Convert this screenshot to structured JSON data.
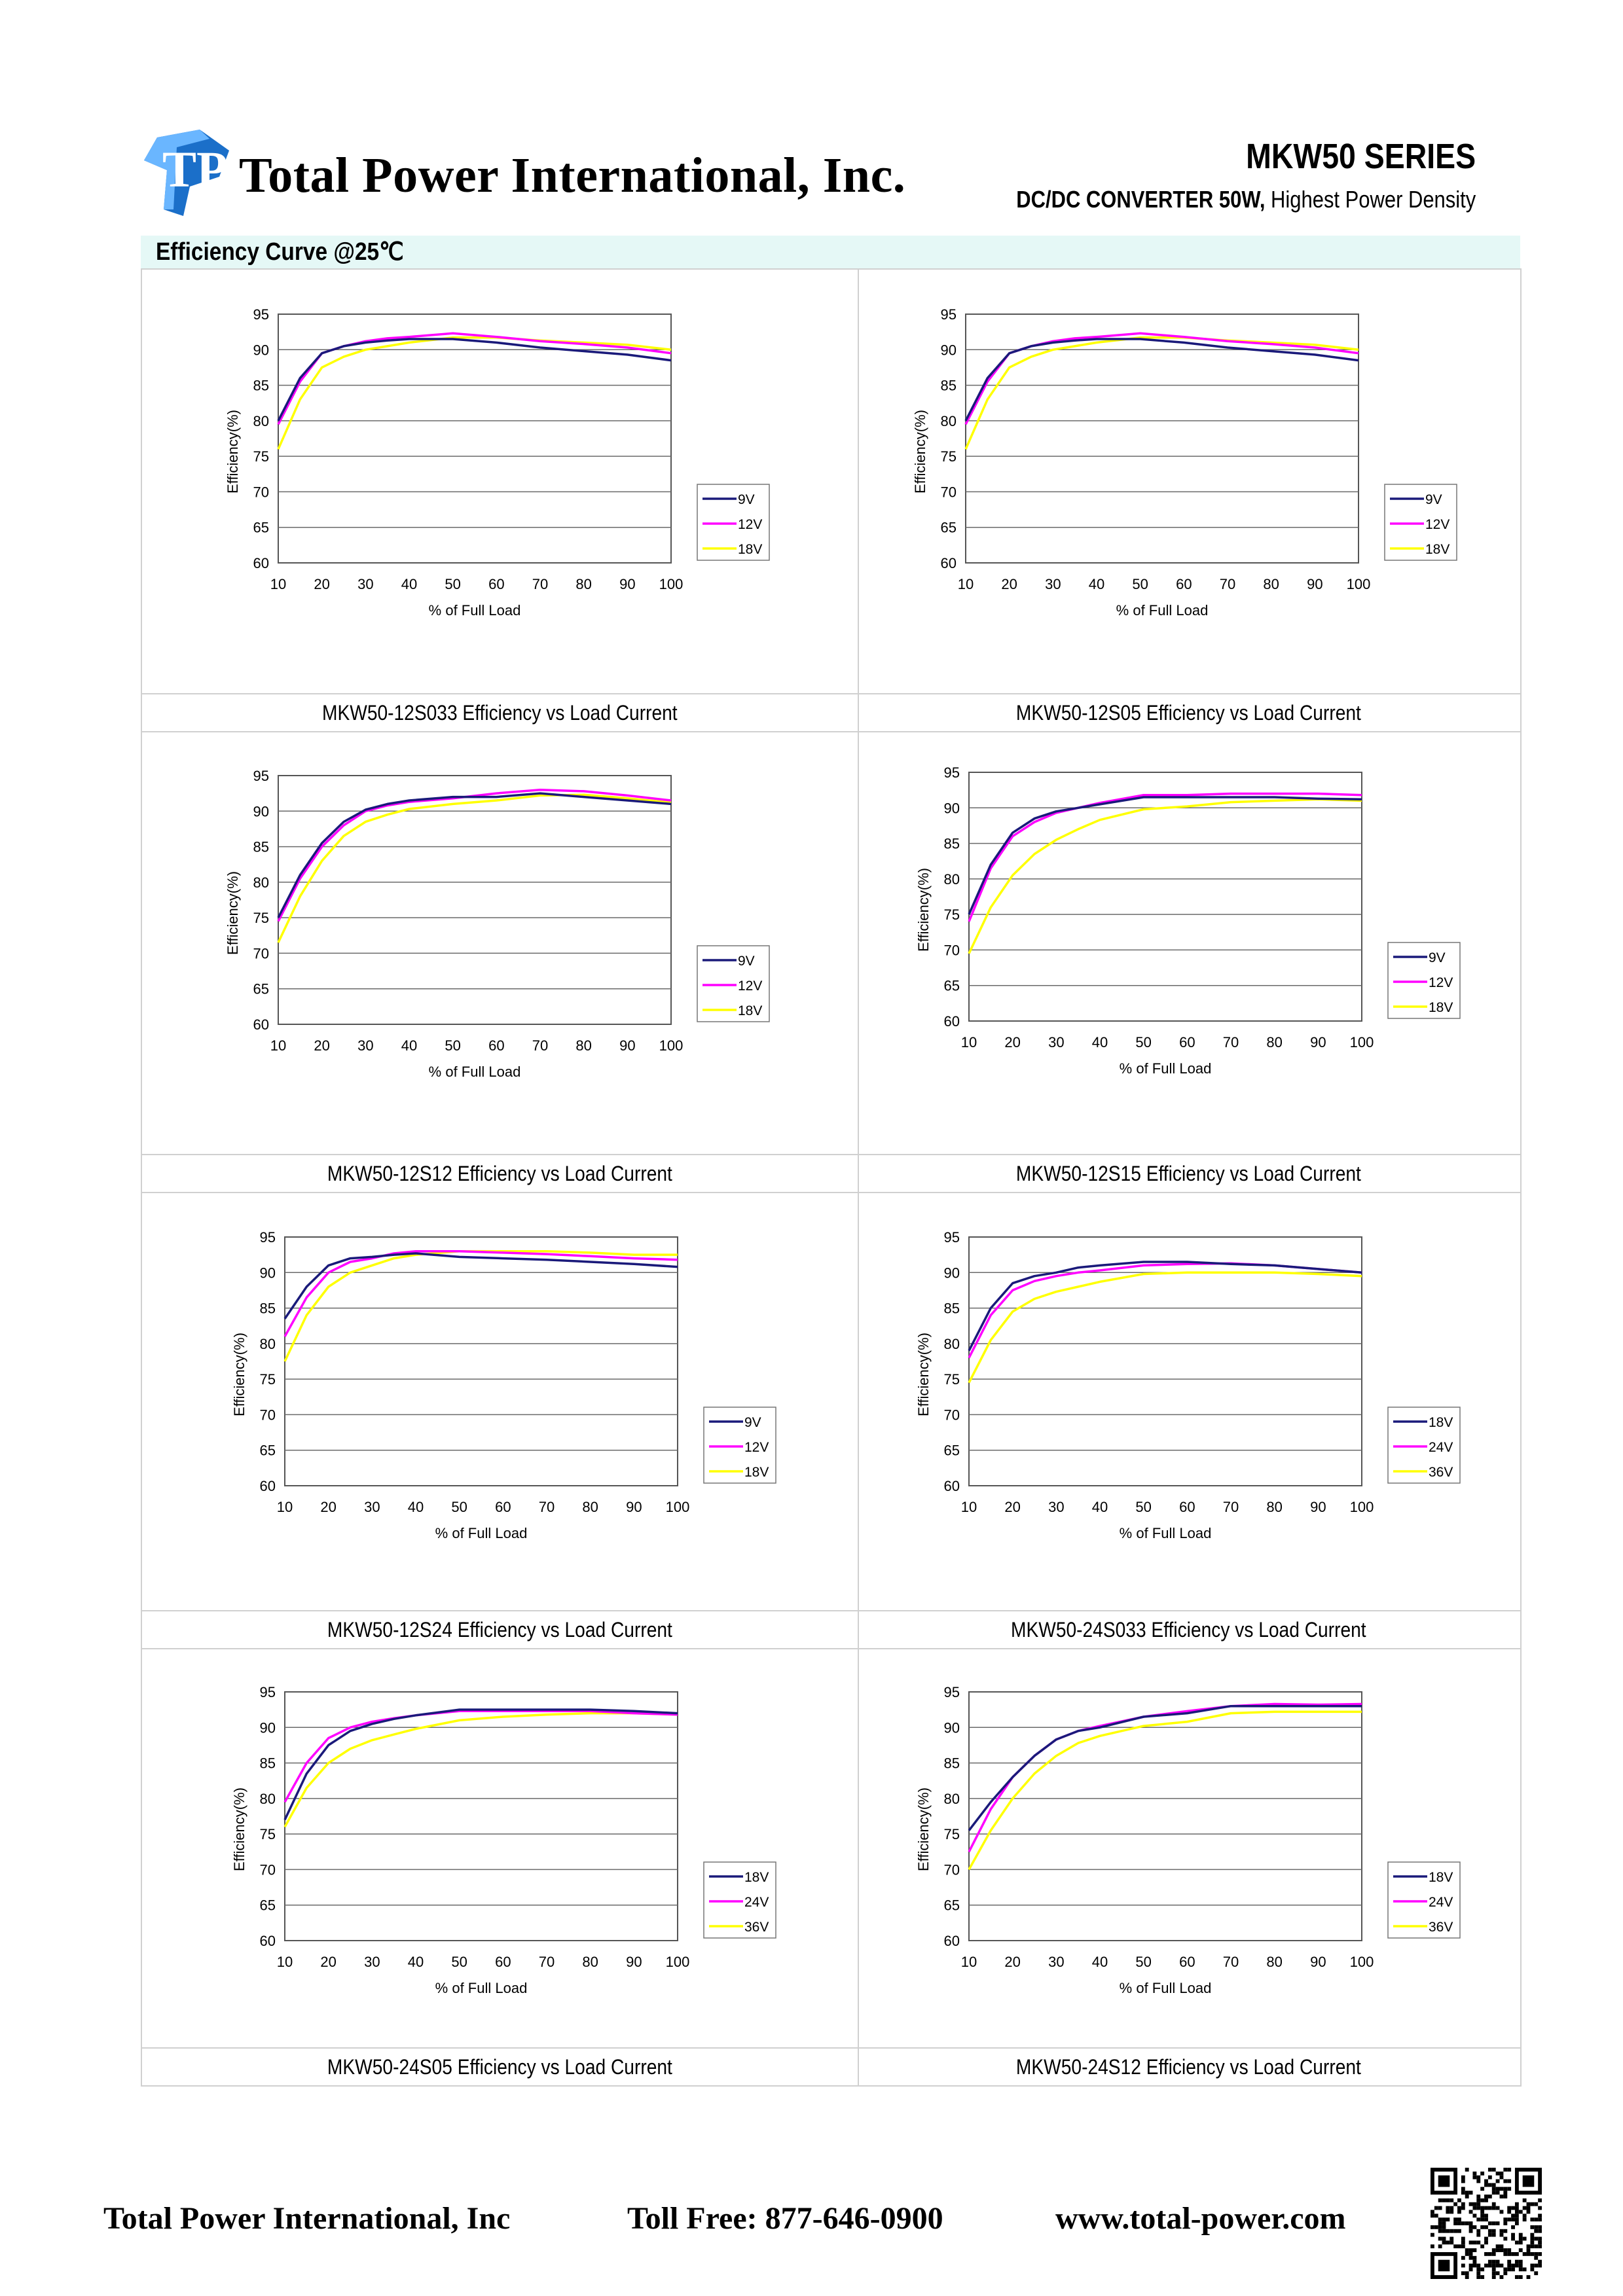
{
  "header": {
    "company": "Total Power International, Inc.",
    "series": "MKW50 SERIES",
    "subtitle_bold": "DC/DC CONVERTER 50W,",
    "subtitle_rest": " Highest Power Density",
    "logo_text": "TP"
  },
  "section": {
    "title": "Efficiency Curve @25℃"
  },
  "footer": {
    "company": "Total Power International, Inc",
    "phone": "Toll Free: 877-646-0900",
    "website": "www.total-power.com",
    "qr_icon": "qr-code-icon"
  },
  "colors": {
    "9V_or_18V": "#1a1a7a",
    "12V_or_24V": "#ff00ff",
    "18V_or_36V": "#ffff00",
    "section_bar": "#e5f8f6"
  },
  "chart_data": [
    {
      "type": "line",
      "title": "MKW50-12S033 Efficiency vs Load Current",
      "xlabel": "% of Full Load",
      "ylabel": "Efficiency(%)",
      "xlim": [
        10,
        100
      ],
      "ylim": [
        60,
        95
      ],
      "xticks": [
        "10",
        "20",
        "30",
        "40",
        "50",
        "60",
        "70",
        "80",
        "90",
        "100"
      ],
      "yticks": [
        "95",
        "90",
        "85",
        "80",
        "75",
        "70",
        "65",
        "60"
      ],
      "grid": true,
      "legend": "right",
      "x": [
        10,
        15,
        20,
        25,
        30,
        35,
        40,
        50,
        60,
        70,
        80,
        90,
        100
      ],
      "series": [
        {
          "name": "9V",
          "values": [
            80,
            86,
            89.5,
            90.5,
            91,
            91.3,
            91.5,
            91.5,
            91,
            90.3,
            89.8,
            89.3,
            88.5
          ]
        },
        {
          "name": "12V",
          "values": [
            79.5,
            85.5,
            89.5,
            90.5,
            91.2,
            91.6,
            91.8,
            92.3,
            91.8,
            91.2,
            90.8,
            90.3,
            89.5
          ]
        },
        {
          "name": "18V",
          "values": [
            76,
            83,
            87.5,
            89,
            90,
            90.5,
            91,
            91.7,
            91.7,
            91.3,
            91,
            90.7,
            90
          ]
        }
      ]
    },
    {
      "type": "line",
      "title": "MKW50-12S05 Efficiency vs Load Current",
      "xlabel": "% of Full Load",
      "ylabel": "Efficiency(%)",
      "xlim": [
        10,
        100
      ],
      "ylim": [
        60,
        95
      ],
      "xticks": [
        "10",
        "20",
        "30",
        "40",
        "50",
        "60",
        "70",
        "80",
        "90",
        "100"
      ],
      "yticks": [
        "95",
        "90",
        "85",
        "80",
        "75",
        "70",
        "65",
        "60"
      ],
      "grid": true,
      "legend": "right",
      "x": [
        10,
        15,
        20,
        25,
        30,
        35,
        40,
        50,
        60,
        70,
        80,
        90,
        100
      ],
      "series": [
        {
          "name": "9V",
          "values": [
            80,
            86,
            89.5,
            90.5,
            91,
            91.3,
            91.5,
            91.5,
            91,
            90.3,
            89.8,
            89.3,
            88.5
          ]
        },
        {
          "name": "12V",
          "values": [
            79.5,
            85.5,
            89.5,
            90.5,
            91.2,
            91.6,
            91.8,
            92.3,
            91.8,
            91.2,
            90.8,
            90.3,
            89.5
          ]
        },
        {
          "name": "18V",
          "values": [
            76,
            83,
            87.5,
            89,
            90,
            90.5,
            91,
            91.7,
            91.7,
            91.3,
            91,
            90.7,
            90
          ]
        }
      ]
    },
    {
      "type": "line",
      "title": "MKW50-12S12 Efficiency vs Load Current",
      "xlabel": "% of Full Load",
      "ylabel": "Efficiency(%)",
      "xlim": [
        10,
        100
      ],
      "ylim": [
        60,
        95
      ],
      "xticks": [
        "10",
        "20",
        "30",
        "40",
        "50",
        "60",
        "70",
        "80",
        "90",
        "100"
      ],
      "yticks": [
        "95",
        "90",
        "85",
        "80",
        "75",
        "70",
        "65",
        "60"
      ],
      "grid": true,
      "legend": "right",
      "x": [
        10,
        15,
        20,
        25,
        30,
        35,
        40,
        50,
        60,
        70,
        80,
        90,
        100
      ],
      "series": [
        {
          "name": "9V",
          "values": [
            75,
            81,
            85.5,
            88.5,
            90.2,
            91,
            91.5,
            92,
            92,
            92.5,
            92,
            91.5,
            91
          ]
        },
        {
          "name": "12V",
          "values": [
            74.5,
            80.5,
            85,
            88,
            90,
            90.8,
            91.3,
            91.8,
            92.5,
            93,
            92.8,
            92.2,
            91.5
          ]
        },
        {
          "name": "18V",
          "values": [
            71.5,
            78,
            83,
            86.5,
            88.5,
            89.5,
            90.3,
            91,
            91.5,
            92.2,
            92.3,
            91.8,
            91.2
          ]
        }
      ]
    },
    {
      "type": "line",
      "title": "MKW50-12S15 Efficiency vs Load Current",
      "xlabel": "% of Full Load",
      "ylabel": "Efficiency(%)",
      "xlim": [
        10,
        100
      ],
      "ylim": [
        60,
        95
      ],
      "xticks": [
        "10",
        "20",
        "30",
        "40",
        "50",
        "60",
        "70",
        "80",
        "90",
        "100"
      ],
      "yticks": [
        "95",
        "90",
        "85",
        "80",
        "75",
        "70",
        "65",
        "60"
      ],
      "grid": true,
      "legend": "right",
      "x": [
        10,
        15,
        20,
        25,
        30,
        35,
        40,
        50,
        60,
        70,
        80,
        90,
        100
      ],
      "series": [
        {
          "name": "9V",
          "values": [
            75,
            82,
            86.5,
            88.5,
            89.5,
            90,
            90.5,
            91.5,
            91.5,
            91.5,
            91.5,
            91.3,
            91.2
          ]
        },
        {
          "name": "12V",
          "values": [
            74,
            81.5,
            86,
            88,
            89.3,
            90,
            90.7,
            91.8,
            91.8,
            92,
            92,
            92,
            91.8
          ]
        },
        {
          "name": "18V",
          "values": [
            69.5,
            76,
            80.5,
            83.5,
            85.5,
            87,
            88.3,
            89.8,
            90.2,
            90.8,
            91,
            91.2,
            91
          ]
        }
      ]
    },
    {
      "type": "line",
      "title": "MKW50-12S24 Efficiency vs Load Current",
      "xlabel": "% of Full Load",
      "ylabel": "Efficiency(%)",
      "xlim": [
        10,
        100
      ],
      "ylim": [
        60,
        95
      ],
      "xticks": [
        "10",
        "20",
        "30",
        "40",
        "50",
        "60",
        "70",
        "80",
        "90",
        "100"
      ],
      "yticks": [
        "95",
        "90",
        "85",
        "80",
        "75",
        "70",
        "65",
        "60"
      ],
      "grid": true,
      "legend": "right",
      "x": [
        10,
        15,
        20,
        25,
        30,
        35,
        40,
        50,
        60,
        70,
        80,
        90,
        100
      ],
      "series": [
        {
          "name": "9V",
          "values": [
            83.5,
            88,
            91,
            92,
            92.2,
            92.5,
            92.7,
            92.2,
            92,
            91.8,
            91.5,
            91.2,
            90.8
          ]
        },
        {
          "name": "12V",
          "values": [
            81,
            86.5,
            90,
            91.5,
            92,
            92.7,
            93,
            93,
            92.8,
            92.6,
            92.3,
            92,
            91.8
          ]
        },
        {
          "name": "18V",
          "values": [
            77.5,
            84,
            88,
            90,
            91,
            92,
            92.5,
            93,
            93,
            93,
            92.8,
            92.5,
            92.5
          ]
        }
      ]
    },
    {
      "type": "line",
      "title": "MKW50-24S033 Efficiency vs Load Current",
      "xlabel": "% of Full Load",
      "ylabel": "Efficiency(%)",
      "xlim": [
        10,
        100
      ],
      "ylim": [
        60,
        95
      ],
      "xticks": [
        "10",
        "20",
        "30",
        "40",
        "50",
        "60",
        "70",
        "80",
        "90",
        "100"
      ],
      "yticks": [
        "95",
        "90",
        "85",
        "80",
        "75",
        "70",
        "65",
        "60"
      ],
      "grid": true,
      "legend": "right",
      "x": [
        10,
        15,
        20,
        25,
        30,
        35,
        40,
        50,
        60,
        70,
        80,
        90,
        100
      ],
      "series": [
        {
          "name": "18V",
          "values": [
            79,
            85,
            88.5,
            89.5,
            90,
            90.7,
            91,
            91.5,
            91.5,
            91.2,
            91,
            90.5,
            90
          ]
        },
        {
          "name": "24V",
          "values": [
            78,
            84,
            87.5,
            88.8,
            89.5,
            90,
            90.3,
            91,
            91.2,
            91.3,
            91,
            90.5,
            90
          ]
        },
        {
          "name": "36V",
          "values": [
            74.5,
            80.5,
            84.5,
            86.3,
            87.3,
            88,
            88.7,
            89.8,
            90,
            90,
            90,
            89.8,
            89.5
          ]
        }
      ]
    },
    {
      "type": "line",
      "title": "MKW50-24S05 Efficiency vs Load Current",
      "xlabel": "% of Full Load",
      "ylabel": "Efficiency(%)",
      "xlim": [
        10,
        100
      ],
      "ylim": [
        60,
        95
      ],
      "xticks": [
        "10",
        "20",
        "30",
        "40",
        "50",
        "60",
        "70",
        "80",
        "90",
        "100"
      ],
      "yticks": [
        "95",
        "90",
        "85",
        "80",
        "75",
        "70",
        "65",
        "60"
      ],
      "grid": true,
      "legend": "right",
      "x": [
        10,
        15,
        20,
        25,
        30,
        35,
        40,
        50,
        60,
        70,
        80,
        90,
        100
      ],
      "series": [
        {
          "name": "18V",
          "values": [
            77,
            83.5,
            87.5,
            89.5,
            90.5,
            91.2,
            91.7,
            92.5,
            92.5,
            92.5,
            92.5,
            92.3,
            92
          ]
        },
        {
          "name": "24V",
          "values": [
            79.5,
            85,
            88.5,
            90,
            90.8,
            91.3,
            91.7,
            92.3,
            92.3,
            92.3,
            92.3,
            92,
            91.8
          ]
        },
        {
          "name": "36V",
          "values": [
            76,
            81.5,
            85,
            87,
            88.2,
            89,
            89.8,
            91,
            91.5,
            91.8,
            92,
            92,
            91.8
          ]
        }
      ]
    },
    {
      "type": "line",
      "title": "MKW50-24S12 Efficiency vs Load Current",
      "xlabel": "% of Full Load",
      "ylabel": "Efficiency(%)",
      "xlim": [
        10,
        100
      ],
      "ylim": [
        60,
        95
      ],
      "xticks": [
        "10",
        "20",
        "30",
        "40",
        "50",
        "60",
        "70",
        "80",
        "90",
        "100"
      ],
      "yticks": [
        "95",
        "90",
        "85",
        "80",
        "75",
        "70",
        "65",
        "60"
      ],
      "grid": true,
      "legend": "right",
      "x": [
        10,
        15,
        20,
        25,
        30,
        35,
        40,
        50,
        60,
        70,
        80,
        90,
        100
      ],
      "series": [
        {
          "name": "18V",
          "values": [
            75.5,
            79.5,
            83,
            86,
            88.3,
            89.5,
            90,
            91.5,
            92,
            93,
            93,
            93,
            93
          ]
        },
        {
          "name": "24V",
          "values": [
            72.5,
            78.5,
            83,
            86,
            88.3,
            89.5,
            90.2,
            91.5,
            92.3,
            93,
            93.3,
            93.2,
            93.3
          ]
        },
        {
          "name": "36V",
          "values": [
            70,
            75.5,
            80,
            83.5,
            86,
            87.8,
            88.8,
            90.2,
            90.8,
            92,
            92.2,
            92.2,
            92.2
          ]
        }
      ]
    }
  ]
}
